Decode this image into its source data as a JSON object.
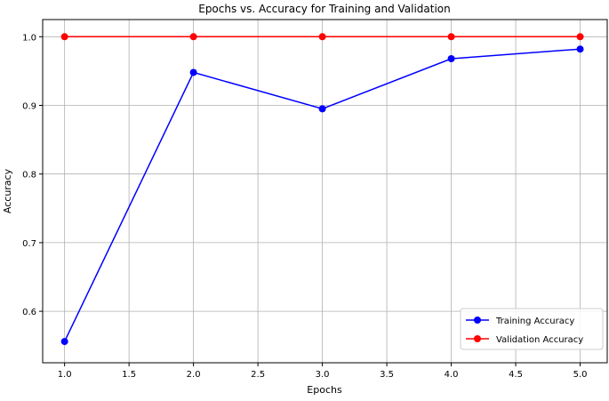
{
  "chart_data": {
    "type": "line",
    "title": "Epochs vs. Accuracy for Training and Validation",
    "xlabel": "Epochs",
    "ylabel": "Accuracy",
    "xlim": [
      0.83,
      5.21
    ],
    "ylim": [
      0.525,
      1.025
    ],
    "xticks": [
      1.0,
      1.5,
      2.0,
      2.5,
      3.0,
      3.5,
      4.0,
      4.5,
      5.0
    ],
    "xtick_labels": [
      "1.0",
      "1.5",
      "2.0",
      "2.5",
      "3.0",
      "3.5",
      "4.0",
      "4.5",
      "5.0"
    ],
    "yticks": [
      0.6,
      0.7,
      0.8,
      0.9,
      1.0
    ],
    "ytick_labels": [
      "0.6",
      "0.7",
      "0.8",
      "0.9",
      "1.0"
    ],
    "grid": true,
    "legend_position": "bottom-right",
    "x": [
      1,
      2,
      3,
      4,
      5
    ],
    "series": [
      {
        "name": "Training Accuracy",
        "color": "#0000ff",
        "values": [
          0.556,
          0.948,
          0.895,
          0.968,
          0.982
        ]
      },
      {
        "name": "Validation Accuracy",
        "color": "#ff0000",
        "values": [
          1.0,
          1.0,
          1.0,
          1.0,
          1.0
        ]
      }
    ]
  }
}
